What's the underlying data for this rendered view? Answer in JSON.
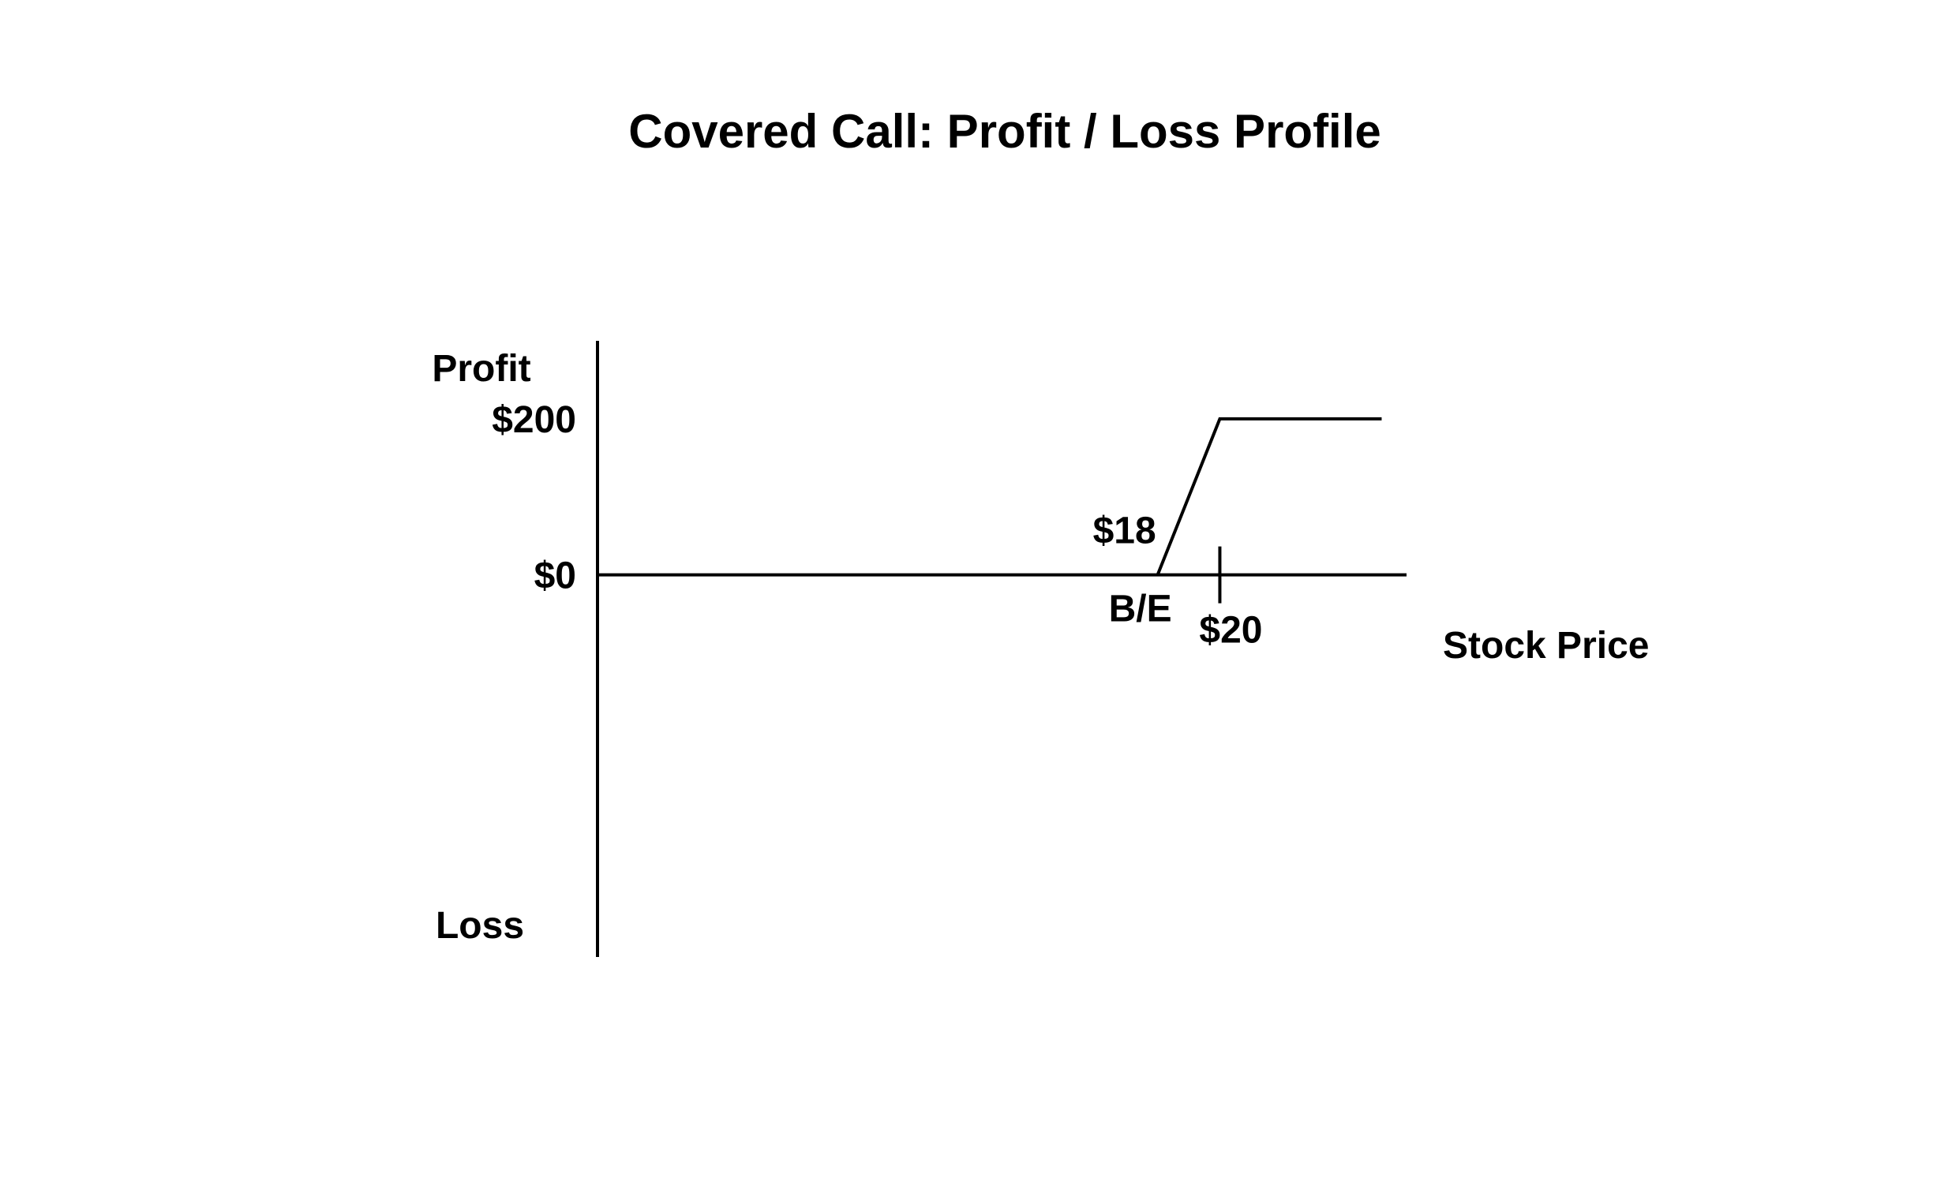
{
  "chart_data": {
    "type": "line",
    "title": "Covered Call: Profit / Loss Profile",
    "xlabel": "Stock Price",
    "ylabel_top": "Profit",
    "ylabel_bottom": "Loss",
    "ylim": [
      -490,
      300
    ],
    "xlim": [
      0,
      26
    ],
    "y_ticks": [
      {
        "value": 200,
        "label": "$200"
      },
      {
        "value": 0,
        "label": "$0"
      }
    ],
    "x_ticks": [
      {
        "value": 20,
        "label": "$20"
      }
    ],
    "annotations": [
      {
        "text": "$18",
        "x": 18,
        "y": 0,
        "position": "above"
      },
      {
        "text": "B/E",
        "x": 18,
        "y": 0,
        "position": "below"
      }
    ],
    "series": [
      {
        "points": [
          {
            "x": 18,
            "y": 0
          },
          {
            "x": 20,
            "y": 200
          },
          {
            "x": 25.2,
            "y": 200
          }
        ]
      }
    ],
    "grid": false,
    "colors": {
      "line": "#000000",
      "axis": "#000000",
      "background": "#ffffff"
    }
  }
}
